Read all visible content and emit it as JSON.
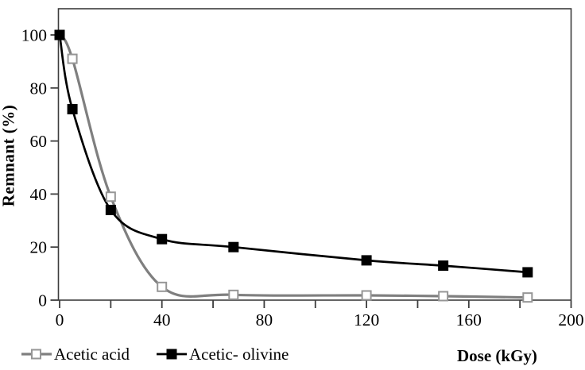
{
  "figure": {
    "background": "#ffffff"
  },
  "chart_data": {
    "type": "line",
    "title": "",
    "xlabel": "Dose (kGy)",
    "ylabel": "Remnant (%)",
    "xlim": [
      0,
      200
    ],
    "ylim": [
      0,
      109.5
    ],
    "x_major_ticks": [
      0,
      40,
      80,
      120,
      160,
      200
    ],
    "x_minor_ticks": [
      20,
      60,
      100,
      140,
      180
    ],
    "y_ticks": [
      0,
      20,
      40,
      60,
      80,
      100
    ],
    "grid": false,
    "legend_position": "bottom-left",
    "axis_color": "#3d3d3d",
    "text_color": "#000000",
    "series": [
      {
        "name": "Acetic acid",
        "color": "#7f7f7f",
        "marker": "open-square",
        "marker_fill": "#ffffff",
        "marker_edge": "#969696",
        "line_width": 3.2,
        "x": [
          0,
          5,
          20,
          40,
          68,
          120,
          150,
          183
        ],
        "y": [
          100,
          91,
          39,
          5,
          2,
          1.8,
          1.5,
          1
        ]
      },
      {
        "name": "Acetic- olivine",
        "color": "#000000",
        "marker": "filled-square",
        "marker_fill": "#000000",
        "marker_edge": "#000000",
        "line_width": 2.7,
        "x": [
          0,
          5,
          20,
          40,
          68,
          120,
          150,
          183
        ],
        "y": [
          100,
          72,
          34,
          23,
          20,
          15,
          13,
          10.5
        ]
      }
    ]
  }
}
